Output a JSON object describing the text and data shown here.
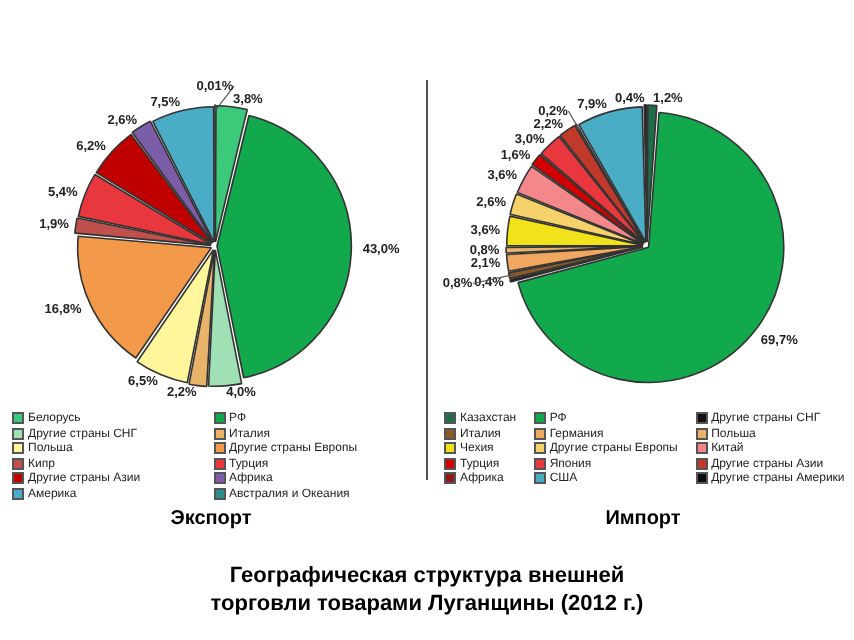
{
  "chart_data": [
    {
      "type": "pie",
      "title": "Экспорт",
      "legend": "bottom",
      "categories": [
        "Белорусь",
        "РФ",
        "Другие страны СНГ",
        "Италия",
        "Польша",
        "Другие страны Европы",
        "Кипр",
        "Турция",
        "Другие страны Азии",
        "Африка",
        "Америка",
        "Австралия и Океания"
      ],
      "values": [
        3.8,
        43.0,
        4.0,
        2.2,
        6.5,
        16.8,
        1.9,
        5.4,
        6.2,
        2.6,
        7.5,
        0.01
      ],
      "value_labels": [
        "3,8%",
        "43,0%",
        "4,0%",
        "2,2%",
        "6,5%",
        "16,8%",
        "1,9%",
        "5,4%",
        "6,2%",
        "2,6%",
        "7,5%",
        "0,01%"
      ],
      "colors": [
        "#3cc97a",
        "#12a84c",
        "#9fe0b4",
        "#e8b46a",
        "#fff59a",
        "#f39a4a",
        "#c0504d",
        "#e8383d",
        "#c00000",
        "#7b5ea7",
        "#4bacc6",
        "#2e8b8b"
      ],
      "annotations": [
        "Географическая структура внешней торговли товарами Луганщины (2012 г.)"
      ]
    },
    {
      "type": "pie",
      "title": "Импорт",
      "legend": "bottom",
      "categories": [
        "Казахстан",
        "РФ",
        "Другие страны СНГ",
        "Италия",
        "Германия",
        "Польша",
        "Чехия",
        "Другие страны Европы",
        "Китай",
        "Турция",
        "Япония",
        "Другие страны Азии",
        "Африка",
        "США",
        "Другие страны Америки"
      ],
      "values": [
        1.2,
        69.7,
        0.4,
        0.8,
        2.1,
        0.8,
        3.6,
        2.6,
        3.6,
        1.6,
        3.0,
        2.2,
        0.2,
        7.9,
        0.4
      ],
      "value_labels": [
        "1,2%",
        "69,7%",
        "0,4%",
        "0,8%",
        "2,1%",
        "0,8%",
        "3,6%",
        "2,6%",
        "3,6%",
        "1,6%",
        "3,0%",
        "2,2%",
        "0,2%",
        "7,9%",
        "0,4%"
      ],
      "colors": [
        "#1f6b4a",
        "#12a84c",
        "#111111",
        "#8b5a2b",
        "#f0a860",
        "#e8b46a",
        "#f2e21a",
        "#f7d26a",
        "#f4878a",
        "#d40000",
        "#e8383d",
        "#c0392b",
        "#8b1a1a",
        "#4bacc6",
        "#0d0d0d"
      ]
    }
  ]
}
